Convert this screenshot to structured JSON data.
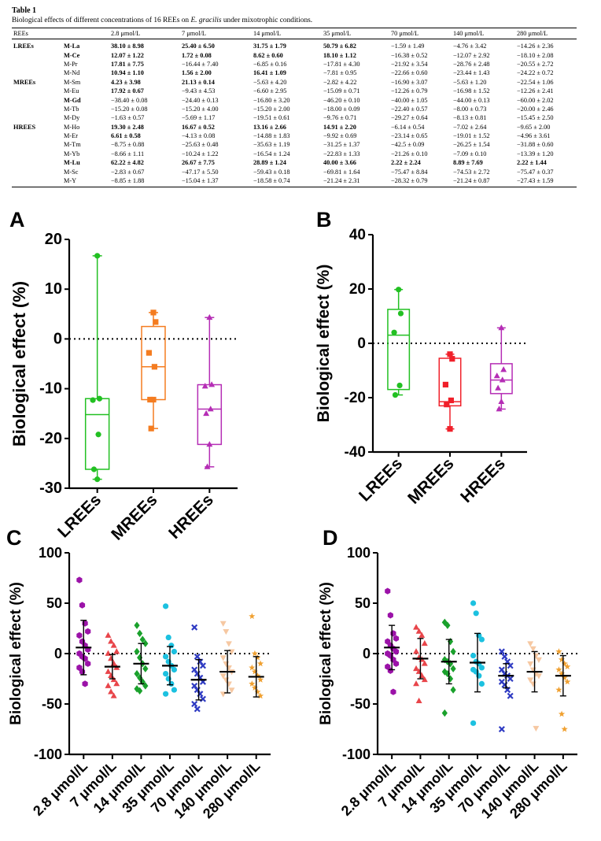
{
  "table": {
    "title": "Table 1",
    "caption_prefix": "Biological effects of different concentrations of 16 REEs on ",
    "caption_species": "E. gracilis",
    "caption_suffix": " under mixotrophic conditions.",
    "headers": [
      "REEs",
      "",
      "2.8 μmol/L",
      "7 μmol/L",
      "14 μmol/L",
      "35 μmol/L",
      "70 μmol/L",
      "140 μmol/L",
      "280 μmol/L"
    ],
    "rows": [
      {
        "group": "LREEs",
        "name": "M-La",
        "bold": true,
        "values": [
          "38.10 ± 8.98",
          "25.40 ± 6.50",
          "31.75 ± 1.79",
          "50.79 ± 6.82",
          "−1.59 ± 1.49",
          "−4.76 ± 3.42",
          "−14.26 ± 2.36"
        ],
        "bv": [
          true,
          true,
          true,
          true,
          false,
          false,
          false
        ]
      },
      {
        "group": "",
        "name": "M-Ce",
        "bold": true,
        "values": [
          "12.07 ± 1.22",
          "1.72 ± 0.08",
          "8.62 ± 0.60",
          "18.10 ± 1.12",
          "−16.38 ± 0.52",
          "−12.07 ± 2.92",
          "−18.10 ± 2.08"
        ],
        "bv": [
          true,
          true,
          true,
          true,
          false,
          false,
          false
        ]
      },
      {
        "group": "",
        "name": "M-Pr",
        "bold": false,
        "values": [
          "17.81 ± 7.75",
          "−16.44 ± 7.40",
          "−6.85 ± 0.16",
          "−17.81 ± 4.30",
          "−21.92 ± 3.54",
          "−28.76 ± 2.48",
          "−20.55 ± 2.72"
        ],
        "bv": [
          true,
          false,
          false,
          false,
          false,
          false,
          false
        ]
      },
      {
        "group": "",
        "name": "M-Nd",
        "bold": false,
        "values": [
          "10.94 ± 1.10",
          "1.56 ± 2.00",
          "16.41 ± 1.09",
          "−7.81 ± 0.95",
          "−22.66 ± 0.60",
          "−23.44 ± 1.43",
          "−24.22 ± 0.72"
        ],
        "bv": [
          true,
          true,
          true,
          false,
          false,
          false,
          false
        ]
      },
      {
        "group": "MREEs",
        "name": "M-Sm",
        "bold": false,
        "values": [
          "4.23 ± 3.98",
          "21.13 ± 0.14",
          "−5.63 ± 4.20",
          "−2.82 ± 4.22",
          "−16.90 ± 3.07",
          "−5.63 ± 1.20",
          "−22.54 ± 1.06"
        ],
        "bv": [
          true,
          true,
          false,
          false,
          false,
          false,
          false
        ]
      },
      {
        "group": "",
        "name": "M-Eu",
        "bold": false,
        "values": [
          "17.92 ± 0.67",
          "−9.43 ± 4.53",
          "−6.60 ± 2.95",
          "−15.09 ± 0.71",
          "−12.26 ± 0.79",
          "−16.98 ± 1.52",
          "−12.26 ± 2.41"
        ],
        "bv": [
          true,
          false,
          false,
          false,
          false,
          false,
          false
        ]
      },
      {
        "group": "",
        "name": "M-Gd",
        "bold": true,
        "values": [
          "−38.40 ± 0.08",
          "−24.40 ± 0.13",
          "−16.80 ± 3.20",
          "−46.20 ± 0.10",
          "−40.00 ± 1.05",
          "−44.00 ± 0.13",
          "−60.00 ± 2.02"
        ],
        "bv": [
          false,
          false,
          false,
          false,
          false,
          false,
          false
        ]
      },
      {
        "group": "",
        "name": "M-Tb",
        "bold": false,
        "values": [
          "−15.20 ± 0.08",
          "−15.20 ± 4.00",
          "−15.20 ± 2.00",
          "−18.00 ± 0.09",
          "−22.40 ± 0.57",
          "−8.00 ± 0.73",
          "−20.00 ± 2.46"
        ],
        "bv": [
          false,
          false,
          false,
          false,
          false,
          false,
          false
        ]
      },
      {
        "group": "",
        "name": "M-Dy",
        "bold": false,
        "values": [
          "−1.63 ± 0.57",
          "−5.69 ± 1.17",
          "−19.51 ± 0.61",
          "−9.76 ± 0.71",
          "−29.27 ± 0.64",
          "−8.13 ± 0.81",
          "−15.45 ± 2.50"
        ],
        "bv": [
          false,
          false,
          false,
          false,
          false,
          false,
          false
        ]
      },
      {
        "group": "HREES",
        "name": "M-Ho",
        "bold": false,
        "values": [
          "19.30 ± 2.48",
          "16.67 ± 0.52",
          "13.16 ± 2.66",
          "14.91 ± 2.20",
          "−6.14 ± 0.54",
          "−7.02 ± 2.64",
          "−9.65 ± 2.00"
        ],
        "bv": [
          true,
          true,
          true,
          true,
          false,
          false,
          false
        ]
      },
      {
        "group": "",
        "name": "M-Er",
        "bold": false,
        "values": [
          "6.61 ± 0.58",
          "−4.13 ± 0.08",
          "−14.88 ± 1.83",
          "−9.92 ± 0.69",
          "−23.14 ± 0.65",
          "−19.01 ± 1.52",
          "−4.96 ± 3.61"
        ],
        "bv": [
          true,
          false,
          false,
          false,
          false,
          false,
          false
        ]
      },
      {
        "group": "",
        "name": "M-Tm",
        "bold": false,
        "values": [
          "−8.75 ± 0.88",
          "−25.63 ± 0.48",
          "−35.63 ± 1.19",
          "−31.25 ± 1.37",
          "−42.5 ± 0.09",
          "−26.25 ± 1.54",
          "−31.88 ± 0.60"
        ],
        "bv": [
          false,
          false,
          false,
          false,
          false,
          false,
          false
        ]
      },
      {
        "group": "",
        "name": "M-Yb",
        "bold": false,
        "values": [
          "−8.66 ± 1.11",
          "−10.24 ± 1.22",
          "−16.54 ± 1.24",
          "−22.83 ± 1.33",
          "−21.26 ± 0.10",
          "−7.09 ± 0.10",
          "−13.39 ± 1.20"
        ],
        "bv": [
          false,
          false,
          false,
          false,
          false,
          false,
          false
        ]
      },
      {
        "group": "",
        "name": "M-Lu",
        "bold": true,
        "values": [
          "62.22 ± 4.82",
          "26.67 ± 7.75",
          "28.89 ± 1.24",
          "40.00 ± 3.66",
          "2.22 ± 2.24",
          "8.89 ± 7.69",
          "2.22 ± 1.44"
        ],
        "bv": [
          true,
          true,
          true,
          true,
          true,
          true,
          true
        ]
      },
      {
        "group": "",
        "name": "M-Sc",
        "bold": false,
        "values": [
          "−2.83 ± 0.67",
          "−47.17 ± 5.50",
          "−59.43 ± 0.18",
          "−69.81 ± 1.64",
          "−75.47 ± 8.84",
          "−74.53 ± 2.72",
          "−75.47 ± 0.37"
        ],
        "bv": [
          false,
          false,
          false,
          false,
          false,
          false,
          false
        ]
      },
      {
        "group": "",
        "name": "M-Y",
        "bold": false,
        "values": [
          "−8.85 ± 1.88",
          "−15.04 ± 1.37",
          "−18.58 ± 0.74",
          "−21.24 ± 2.31",
          "−28.32 ± 0.79",
          "−21.24 ± 0.87",
          "−27.43 ± 1.59"
        ],
        "bv": [
          false,
          false,
          false,
          false,
          false,
          false,
          false
        ]
      }
    ]
  },
  "chart_data": [
    {
      "id": "A",
      "type": "box",
      "panel_label": "A",
      "ylabel": "Biological effect (%)",
      "ylim": [
        -30,
        20
      ],
      "yticks": [
        -30,
        -20,
        -10,
        0,
        10,
        20
      ],
      "categories": [
        "LREEs",
        "MREEs",
        "HREEs"
      ],
      "colors": [
        "#22c022",
        "#f47c20",
        "#b52db5"
      ],
      "markers": [
        "circle",
        "square",
        "triangle"
      ],
      "boxes": [
        {
          "min": -28.2,
          "q1": -26.2,
          "median": -15.2,
          "q3": -12.0,
          "max": 16.7
        },
        {
          "min": -18.0,
          "q1": -12.2,
          "median": -5.6,
          "q3": 2.5,
          "max": 5.3
        },
        {
          "min": -25.7,
          "q1": -21.2,
          "median": -14.1,
          "q3": -9.2,
          "max": 4.3
        }
      ],
      "points": [
        [
          16.7,
          -12.0,
          -12.3,
          -19.2,
          -26.2,
          -28.2
        ],
        [
          5.3,
          3.4,
          -2.8,
          -5.6,
          -12.2,
          -12.2,
          -18.0
        ],
        [
          4.3,
          -9.2,
          -9.5,
          -14.1,
          -15.0,
          -21.2,
          -25.7
        ]
      ]
    },
    {
      "id": "B",
      "type": "box",
      "panel_label": "B",
      "ylabel": "Biological effect (%)",
      "ylim": [
        -40,
        40
      ],
      "yticks": [
        -40,
        -20,
        0,
        20,
        40
      ],
      "categories": [
        "LREEs",
        "MREEs",
        "HREEs"
      ],
      "colors": [
        "#22c022",
        "#f0202a",
        "#b52db5"
      ],
      "markers": [
        "circle",
        "square",
        "triangle"
      ],
      "boxes": [
        {
          "min": -19.0,
          "q1": -17.0,
          "median": 3.0,
          "q3": 12.5,
          "max": 19.8
        },
        {
          "min": -31.5,
          "q1": -23.0,
          "median": -21.5,
          "q3": -5.5,
          "max": -4.0
        },
        {
          "min": -24.2,
          "q1": -18.5,
          "median": -13.5,
          "q3": -7.5,
          "max": 5.7
        }
      ],
      "points": [
        [
          19.8,
          11.0,
          4.0,
          -15.5,
          -19.0
        ],
        [
          -4.0,
          -5.7,
          -15.2,
          -21.0,
          -22.5,
          -31.5
        ],
        [
          5.7,
          -9.7,
          -12.0,
          -13.5,
          -16.5,
          -21.5,
          -24.2
        ]
      ]
    },
    {
      "id": "C",
      "type": "scatter",
      "panel_label": "C",
      "ylabel": "Biological effect (%)",
      "ylim": [
        -100,
        100
      ],
      "yticks": [
        -100,
        -50,
        0,
        50,
        100
      ],
      "categories": [
        "2.8 μmol/L",
        "7 μmol/L",
        "14 μmol/L",
        "35 μmol/L",
        "70 μmol/L",
        "140 μmol/L",
        "280 μmol/L"
      ],
      "colors": [
        "#9b12a8",
        "#e8454a",
        "#1aa12c",
        "#1cc1e0",
        "#2e3ac2",
        "#f6c8a2",
        "#f0a030"
      ],
      "markers": [
        "hexagon",
        "triangle",
        "diamond",
        "circle",
        "x",
        "triangle-down",
        "star"
      ],
      "mean": [
        6,
        -13,
        -10,
        -12,
        -26,
        -18,
        -23
      ],
      "sd": [
        27,
        12,
        20,
        19,
        20,
        21,
        20
      ],
      "points": [
        [
          73,
          48,
          30,
          22,
          18,
          12,
          8,
          4,
          0,
          -3,
          -5,
          -10,
          -14,
          -18,
          -30
        ],
        [
          18,
          12,
          8,
          2,
          0,
          -5,
          -10,
          -14,
          -18,
          -22,
          -26,
          -30,
          -32,
          -38,
          -42
        ],
        [
          28,
          20,
          14,
          10,
          2,
          -4,
          -10,
          -15,
          -20,
          -24,
          -28,
          -32,
          -35,
          -37
        ],
        [
          47,
          16,
          8,
          2,
          -3,
          -8,
          -12,
          -16,
          -20,
          -25,
          -30,
          -36,
          -40
        ],
        [
          26,
          -3,
          -8,
          -12,
          -16,
          -20,
          -24,
          -28,
          -32,
          -36,
          -40,
          -45,
          -50,
          -55
        ],
        [
          30,
          22,
          10,
          2,
          -4,
          -10,
          -14,
          -18,
          -22,
          -26,
          -30,
          -36,
          -40
        ],
        [
          37,
          0,
          -4,
          -10,
          -14,
          -18,
          -22,
          -26,
          -30,
          -34,
          -38,
          -42
        ]
      ]
    },
    {
      "id": "D",
      "type": "scatter",
      "panel_label": "D",
      "ylabel": "Biological effect (%)",
      "ylim": [
        -100,
        100
      ],
      "yticks": [
        -100,
        -50,
        0,
        50,
        100
      ],
      "categories": [
        "2.8 μmol/L",
        "7 μmol/L",
        "14 μmol/L",
        "35 μmol/L",
        "70 μmol/L",
        "140 μmol/L",
        "280 μmol/L"
      ],
      "colors": [
        "#9b12a8",
        "#e8454a",
        "#1aa12c",
        "#1cc1e0",
        "#2e3ac2",
        "#f6c8a2",
        "#f0a030"
      ],
      "markers": [
        "hexagon",
        "triangle",
        "diamond",
        "circle",
        "x",
        "triangle-down",
        "star"
      ],
      "mean": [
        6,
        -5,
        -8,
        -9,
        -22,
        -18,
        -22
      ],
      "sd": [
        22,
        20,
        22,
        29,
        12,
        20,
        20
      ],
      "points": [
        [
          62,
          38,
          20,
          15,
          12,
          8,
          5,
          2,
          0,
          -2,
          -6,
          -10,
          -13,
          -17,
          -38
        ],
        [
          26,
          22,
          18,
          10,
          2,
          -4,
          -6,
          -10,
          -15,
          -18,
          -22,
          -26,
          -30,
          -47
        ],
        [
          31,
          28,
          12,
          2,
          -6,
          -8,
          -10,
          -15,
          -18,
          -20,
          -25,
          -36,
          -59
        ],
        [
          50,
          40,
          18,
          14,
          -2,
          -8,
          -10,
          -14,
          -16,
          -18,
          -22,
          -30,
          -69
        ],
        [
          2,
          -3,
          -8,
          -12,
          -16,
          -20,
          -22,
          -25,
          -28,
          -31,
          -36,
          -42,
          -75
        ],
        [
          10,
          5,
          -2,
          -6,
          -10,
          -16,
          -20,
          -22,
          -26,
          -30,
          -74
        ],
        [
          2,
          -6,
          -10,
          -13,
          -16,
          -20,
          -24,
          -28,
          -36,
          -60,
          -75
        ]
      ]
    }
  ]
}
